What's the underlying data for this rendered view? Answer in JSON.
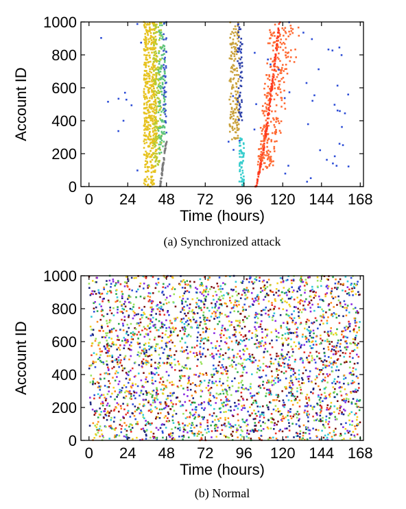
{
  "chart_data": [
    {
      "type": "scatter",
      "caption": "(a) Synchronized attack",
      "xlabel": "Time (hours)",
      "ylabel": "Account ID",
      "xlim": [
        -5,
        170
      ],
      "ylim": [
        0,
        1000
      ],
      "xticks": [
        0,
        24,
        48,
        72,
        96,
        120,
        144,
        168
      ],
      "yticks": [
        0,
        200,
        400,
        600,
        800,
        1000
      ],
      "grid": false,
      "series": [
        {
          "color": "#e6c21f",
          "x_range": [
            34,
            42
          ],
          "y_range": [
            0,
            1000
          ],
          "points": 520
        },
        {
          "color": "#b5cc33",
          "x_range": [
            40,
            45
          ],
          "y_range": [
            100,
            1000
          ],
          "points": 140
        },
        {
          "color": "#5cc27a",
          "x_range": [
            43,
            47
          ],
          "y_range": [
            200,
            1000
          ],
          "points": 110
        },
        {
          "color": "#3a55c8",
          "x_range": [
            46,
            48
          ],
          "y_range": [
            300,
            1000
          ],
          "points": 40
        },
        {
          "color": "#7a7a7a",
          "x_range": [
            44,
            49
          ],
          "y_range": [
            0,
            280
          ],
          "points": 60
        },
        {
          "color": "#c9a03a",
          "x_range": [
            87,
            93
          ],
          "y_range": [
            280,
            1000
          ],
          "points": 160
        },
        {
          "color": "#2b3fa8",
          "x_range": [
            92,
            95
          ],
          "y_range": [
            400,
            1000
          ],
          "points": 60
        },
        {
          "color": "#33cccc",
          "x_range": [
            93,
            96
          ],
          "y_range": [
            0,
            300
          ],
          "points": 50
        },
        {
          "color": "#ff3b1f",
          "x_range": [
            103,
            118
          ],
          "y_range": [
            0,
            1000
          ],
          "points": 180
        },
        {
          "color": "#ff6a33",
          "x_range": [
            100,
            130
          ],
          "y_range": [
            100,
            1000
          ],
          "points": 260
        },
        {
          "color": "#2b4cd6",
          "x_range": [
            5,
            165
          ],
          "y_range": [
            0,
            1000
          ],
          "points": 55
        }
      ]
    },
    {
      "type": "scatter",
      "caption": "(b) Normal",
      "xlabel": "Time (hours)",
      "ylabel": "Account ID",
      "xlim": [
        -5,
        170
      ],
      "ylim": [
        0,
        1000
      ],
      "xticks": [
        0,
        24,
        48,
        72,
        96,
        120,
        144,
        168
      ],
      "yticks": [
        0,
        200,
        400,
        600,
        800,
        1000
      ],
      "grid": false,
      "colors": [
        "#e6352b",
        "#2b4cd6",
        "#f2d11f",
        "#2ea84a",
        "#30c9d6",
        "#8a2be2",
        "#ff8c1a",
        "#7a1010",
        "#1a237e",
        "#9be25c"
      ],
      "points": 3200,
      "x_range": [
        0,
        168
      ],
      "y_range": [
        0,
        1000
      ]
    }
  ]
}
